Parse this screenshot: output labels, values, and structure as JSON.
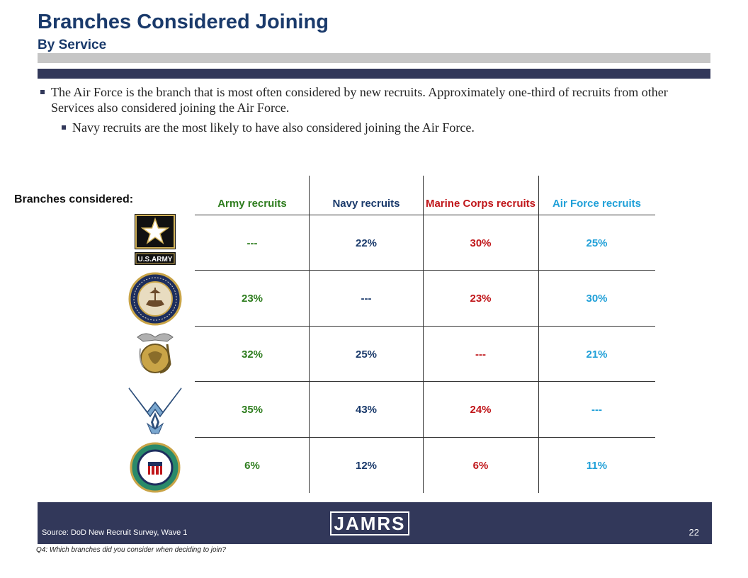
{
  "header": {
    "title": "Branches Considered Joining",
    "subtitle": "By Service"
  },
  "bullets": {
    "main": "The Air Force is the branch that is most often considered by new recruits.  Approximately one-third of recruits from other Services also considered joining the Air Force.",
    "sub": "Navy recruits are the most likely to have also considered joining the Air Force."
  },
  "table": {
    "row_label": "Branches considered:",
    "columns": [
      "Army recruits",
      "Navy recruits",
      "Marine Corps recruits",
      "Air Force recruits"
    ],
    "column_colors": [
      "#2e7d1e",
      "#1a3a6b",
      "#c0161a",
      "#20a0d8"
    ],
    "rows": [
      {
        "branch_icon": "us-army-emblem",
        "cells": [
          "---",
          "22%",
          "30%",
          "25%"
        ]
      },
      {
        "branch_icon": "us-navy-seal",
        "cells": [
          "23%",
          "---",
          "23%",
          "30%"
        ]
      },
      {
        "branch_icon": "marine-corps-emblem",
        "cells": [
          "32%",
          "25%",
          "---",
          "21%"
        ]
      },
      {
        "branch_icon": "air-force-symbol",
        "cells": [
          "35%",
          "43%",
          "24%",
          "---"
        ]
      },
      {
        "branch_icon": "coast-guard-seal",
        "cells": [
          "6%",
          "12%",
          "6%",
          "11%"
        ]
      }
    ],
    "army_logo_text": "U.S.ARMY"
  },
  "footer": {
    "logo": "JAMRS",
    "source": "Source:  DoD New Recruit Survey, Wave 1",
    "page": "22",
    "question": "Q4:  Which branches did you consider when deciding to join?"
  }
}
